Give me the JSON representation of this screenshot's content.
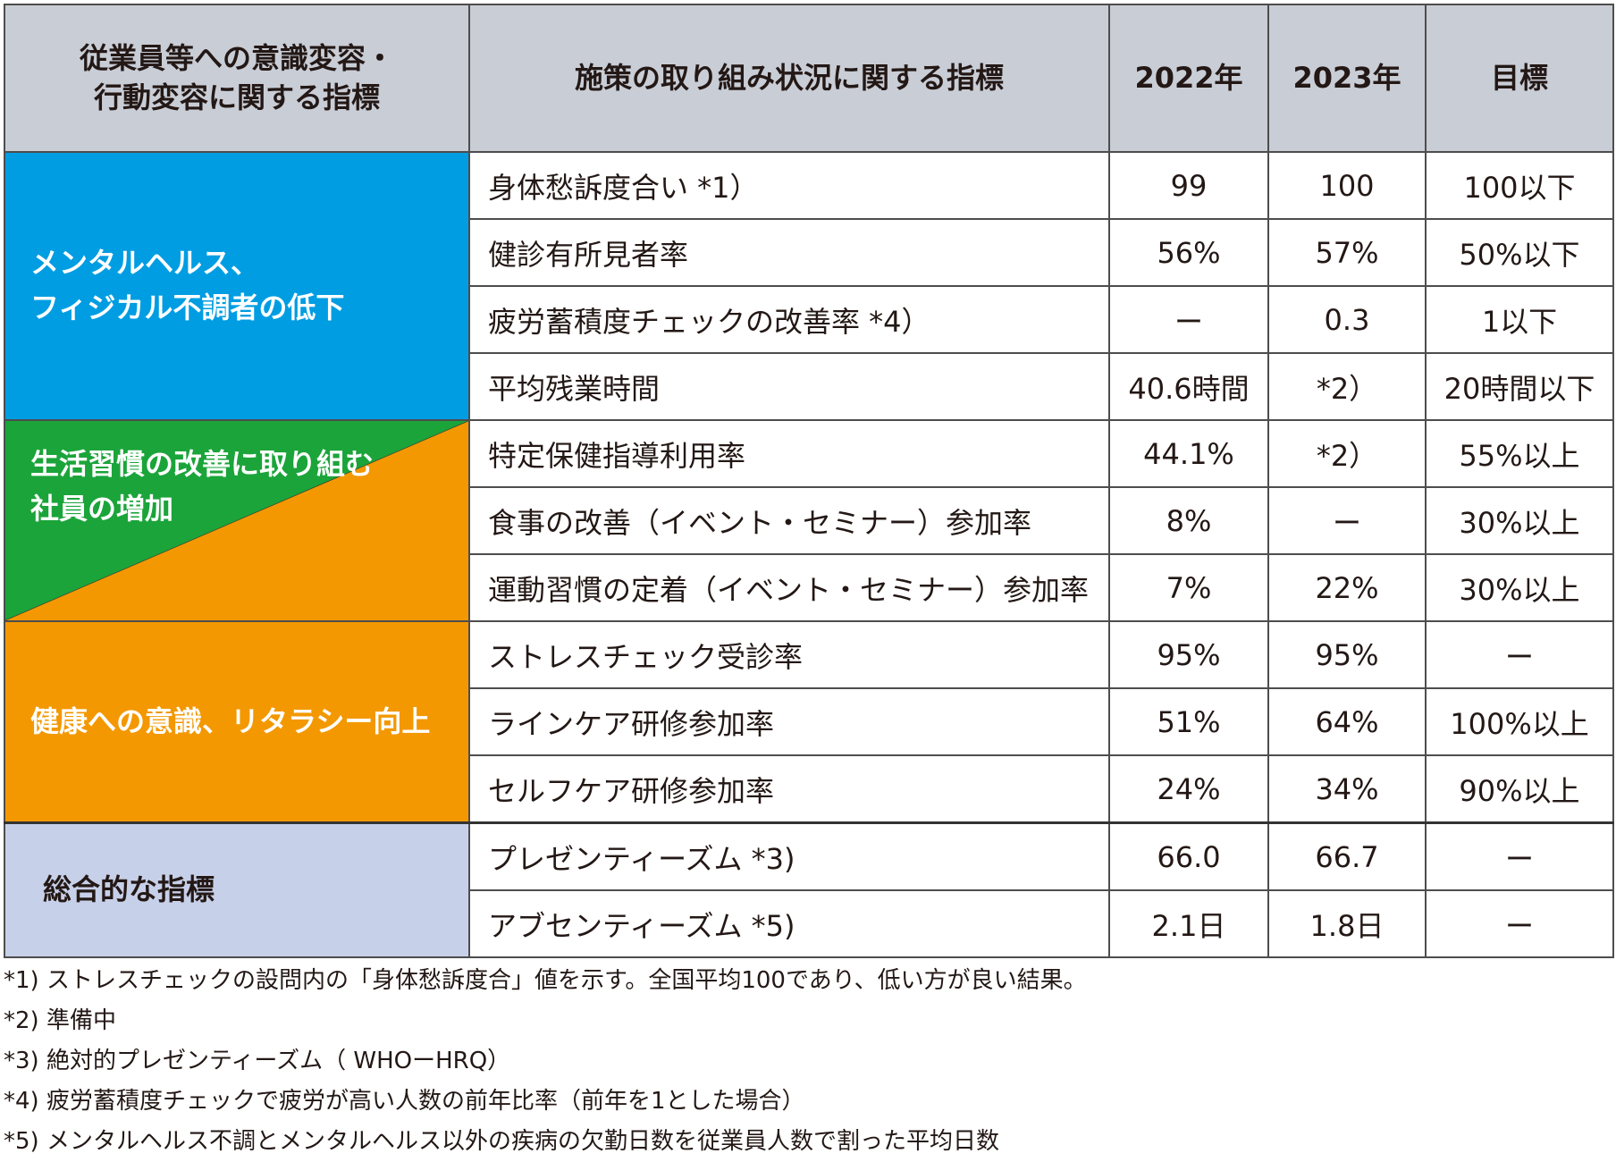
{
  "header": {
    "col_effect": "従業員等への意識変容・\n行動変容に関する指標",
    "col_effect_line1": "従業員等への意識変容・",
    "col_effect_line2": "行動変容に関する指標",
    "col_indicator": "施策の取り組み状況に関する指標",
    "col_2022": "2022年",
    "col_2023": "2023年",
    "col_target": "目標"
  },
  "categories": {
    "mental": {
      "line1": "メンタルヘルス、",
      "line2": "フィジカル不調者の低下",
      "color": "#009de2"
    },
    "lifestyle": {
      "line1": "生活習慣の改善に取り組む",
      "line2": "社員の増加",
      "color": "#1ba43a"
    },
    "literacy": {
      "line1": "健康への意識、リタラシー向上",
      "color": "#f39800"
    },
    "summary": {
      "line1": "総合的な指標",
      "color": "#c7d0e9"
    }
  },
  "rows": [
    {
      "indicator": "身体愁訴度合い *1）",
      "y2022": "99",
      "y2023": "100",
      "target": "100以下"
    },
    {
      "indicator": "健診有所見者率",
      "y2022": "56%",
      "y2023": "57%",
      "target": "50%以下"
    },
    {
      "indicator": "疲労蓄積度チェックの改善率 *4）",
      "y2022": "ー",
      "y2023": "0.3",
      "target": "1以下"
    },
    {
      "indicator": "平均残業時間",
      "y2022": "40.6時間",
      "y2023": "*2）",
      "target": "20時間以下"
    },
    {
      "indicator": "特定保健指導利用率",
      "y2022": "44.1%",
      "y2023": "*2）",
      "target": "55%以上"
    },
    {
      "indicator": "食事の改善（イベント・セミナー）参加率",
      "y2022": "8%",
      "y2023": "ー",
      "target": "30%以上"
    },
    {
      "indicator": "運動習慣の定着（イベント・セミナー）参加率",
      "y2022": "7%",
      "y2023": "22%",
      "target": "30%以上"
    },
    {
      "indicator": "ストレスチェック受診率",
      "y2022": "95%",
      "y2023": "95%",
      "target": "ー"
    },
    {
      "indicator": "ラインケア研修参加率",
      "y2022": "51%",
      "y2023": "64%",
      "target": "100%以上"
    },
    {
      "indicator": "セルフケア研修参加率",
      "y2022": "24%",
      "y2023": "34%",
      "target": "90%以上"
    },
    {
      "indicator": "プレゼンティーズム *3)",
      "y2022": "66.0",
      "y2023": "66.7",
      "target": "ー"
    },
    {
      "indicator": "アブセンティーズム *5)",
      "y2022": "2.1日",
      "y2023": "1.8日",
      "target": "ー"
    }
  ],
  "notes": [
    "*1) ストレスチェックの設問内の「身体愁訴度合」値を示す。全国平均100であり、低い方が良い結果。",
    "*2) 準備中",
    "*3) 絶対的プレゼンティーズム（ WHOーHRQ）",
    "*4) 疲労蓄積度チェックで疲労が高い人数の前年比率（前年を1とした場合）",
    "*5) メンタルヘルス不調とメンタルヘルス以外の疾病の欠勤日数を従業員人数で割った平均日数"
  ]
}
